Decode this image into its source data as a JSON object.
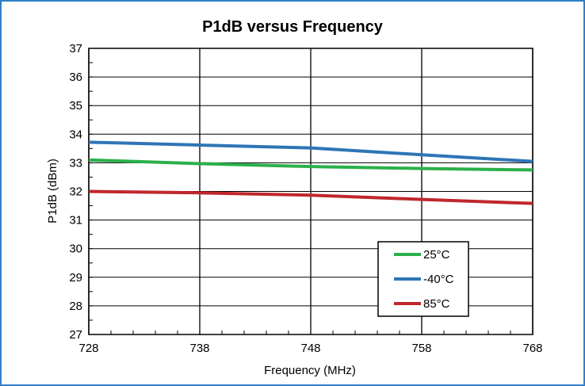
{
  "chart_data": {
    "type": "line",
    "title": "P1dB versus Frequency",
    "xlabel": "Frequency (MHz)",
    "ylabel": "P1dB (dBm)",
    "xlim": [
      728,
      768
    ],
    "ylim": [
      27,
      37
    ],
    "xticks": [
      728,
      738,
      748,
      758,
      768
    ],
    "yticks": [
      27,
      28,
      29,
      30,
      31,
      32,
      33,
      34,
      35,
      36,
      37
    ],
    "grid": true,
    "legend_position": "bottom-right",
    "series": [
      {
        "name": "25°C",
        "color": "#2bb04a",
        "x": [
          728,
          738,
          748,
          758,
          768
        ],
        "y": [
          33.1,
          32.97,
          32.87,
          32.8,
          32.75
        ]
      },
      {
        "name": "-40°C",
        "color": "#2e75b6",
        "x": [
          728,
          738,
          748,
          758,
          768
        ],
        "y": [
          33.72,
          33.62,
          33.52,
          33.28,
          33.05
        ]
      },
      {
        "name": "85°C",
        "color": "#c0272d",
        "x": [
          728,
          738,
          748,
          758,
          768
        ],
        "y": [
          32.0,
          31.95,
          31.87,
          31.72,
          31.58
        ]
      }
    ]
  }
}
